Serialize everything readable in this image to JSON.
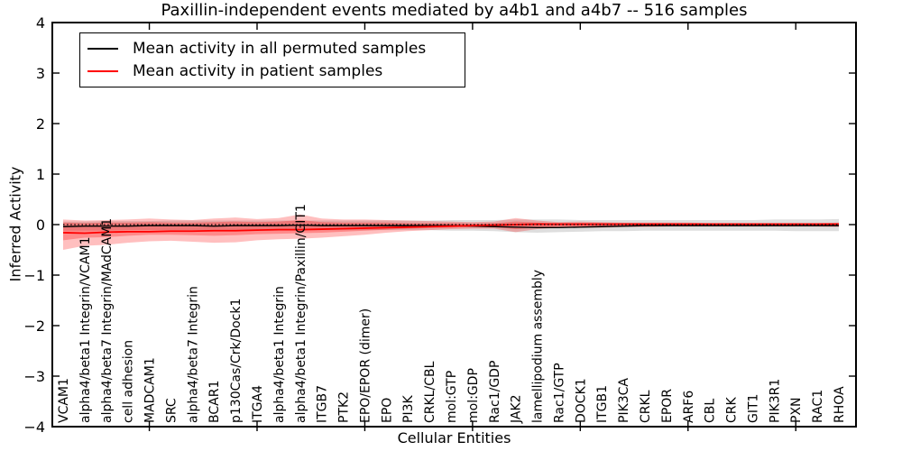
{
  "figure": {
    "title": "Paxillin-independent events mediated by a4b1 and a4b7 -- 516 samples",
    "xlabel": "Cellular Entities",
    "ylabel": "Inferred Activity",
    "legend": [
      {
        "label": "Mean activity in all permuted samples",
        "color": "#000000"
      },
      {
        "label": "Mean activity in patient samples",
        "color": "#ff0000"
      }
    ]
  },
  "chart_data": {
    "type": "line",
    "title": "Paxillin-independent events mediated by a4b1 and a4b7 -- 516 samples",
    "xlabel": "Cellular Entities",
    "ylabel": "Inferred Activity",
    "ylim": [
      -4,
      4
    ],
    "yticks": [
      4,
      3,
      2,
      1,
      0,
      -1,
      -2,
      -3,
      -4
    ],
    "grid": false,
    "legend_position": "upper left",
    "x_major_tick_indices": [
      4,
      9,
      14,
      19,
      24,
      29,
      34
    ],
    "categories": [
      "VCAM1",
      "alpha4/beta1 Integrin/VCAM1",
      "alpha4/beta7 Integrin/MAdCAM1",
      "cell adhesion",
      "MADCAM1",
      "SRC",
      "alpha4/beta7 Integrin",
      "BCAR1",
      "p130Cas/Crk/Dock1",
      "ITGA4",
      "alpha4/beta1 Integrin",
      "alpha4/beta1 Integrin/Paxillin/GIT1",
      "ITGB7",
      "PTK2",
      "EPO/EPOR (dimer)",
      "EPO",
      "PI3K",
      "CRKL/CBL",
      "mol:GTP",
      "mol:GDP",
      "Rac1/GDP",
      "JAK2",
      "lamellipodium assembly",
      "Rac1/GTP",
      "DOCK1",
      "ITGB1",
      "PIK3CA",
      "CRKL",
      "EPOR",
      "ARF6",
      "CBL",
      "CRK",
      "GIT1",
      "PIK3R1",
      "PXN",
      "RAC1",
      "RHOA"
    ],
    "series": [
      {
        "name": "Mean activity in all permuted samples",
        "color": "#000000",
        "style": "solid",
        "width": 1.4,
        "values": [
          -0.04,
          -0.03,
          -0.03,
          -0.03,
          -0.02,
          -0.02,
          -0.02,
          -0.03,
          -0.02,
          -0.02,
          -0.02,
          -0.01,
          -0.02,
          -0.02,
          -0.02,
          -0.02,
          -0.02,
          -0.02,
          -0.02,
          -0.03,
          -0.04,
          -0.05,
          -0.06,
          -0.06,
          -0.05,
          -0.04,
          -0.03,
          -0.02,
          -0.02,
          -0.02,
          -0.02,
          -0.02,
          -0.02,
          -0.02,
          -0.02,
          -0.02,
          -0.02
        ]
      },
      {
        "name": "Mean activity in patient samples",
        "color": "#ff0000",
        "style": "solid",
        "width": 1.8,
        "values": [
          -0.16,
          -0.17,
          -0.15,
          -0.14,
          -0.14,
          -0.13,
          -0.13,
          -0.12,
          -0.12,
          -0.11,
          -0.1,
          -0.1,
          -0.09,
          -0.08,
          -0.07,
          -0.06,
          -0.05,
          -0.04,
          -0.03,
          -0.02,
          -0.01,
          0.0,
          0.01,
          0.01,
          0.01,
          0.01,
          0.01,
          0.01,
          0.01,
          0.01,
          0.01,
          0.01,
          0.01,
          0.01,
          0.01,
          0.01,
          0.01
        ]
      },
      {
        "name": "zero reference",
        "color": "#000000",
        "style": "dotted",
        "width": 1.2,
        "values": [
          0,
          0,
          0,
          0,
          0,
          0,
          0,
          0,
          0,
          0,
          0,
          0,
          0,
          0,
          0,
          0,
          0,
          0,
          0,
          0,
          0,
          0,
          0,
          0,
          0,
          0,
          0,
          0,
          0,
          0,
          0,
          0,
          0,
          0,
          0,
          0,
          0
        ]
      }
    ],
    "bands": [
      {
        "name": "permuted-range",
        "color": "rgba(0,0,0,0.13)",
        "upper": [
          0.06,
          0.06,
          0.07,
          0.07,
          0.07,
          0.08,
          0.08,
          0.08,
          0.08,
          0.08,
          0.08,
          0.08,
          0.08,
          0.08,
          0.08,
          0.08,
          0.08,
          0.08,
          0.09,
          0.09,
          0.09,
          0.1,
          0.1,
          0.1,
          0.09,
          0.09,
          0.09,
          0.09,
          0.09,
          0.09,
          0.09,
          0.09,
          0.09,
          0.1,
          0.1,
          0.1,
          0.11
        ],
        "lower": [
          -0.12,
          -0.12,
          -0.12,
          -0.11,
          -0.11,
          -0.11,
          -0.11,
          -0.11,
          -0.11,
          -0.11,
          -0.11,
          -0.11,
          -0.11,
          -0.11,
          -0.11,
          -0.11,
          -0.11,
          -0.11,
          -0.12,
          -0.12,
          -0.13,
          -0.15,
          -0.16,
          -0.15,
          -0.14,
          -0.13,
          -0.13,
          -0.12,
          -0.12,
          -0.12,
          -0.12,
          -0.12,
          -0.12,
          -0.12,
          -0.13,
          -0.13,
          -0.13
        ]
      },
      {
        "name": "patient-range-outer",
        "color": "rgba(255,0,0,0.25)",
        "upper": [
          0.1,
          0.08,
          0.09,
          0.1,
          0.12,
          0.1,
          0.09,
          0.12,
          0.14,
          0.11,
          0.13,
          0.2,
          0.12,
          0.1,
          0.1,
          0.09,
          0.08,
          0.07,
          0.06,
          0.05,
          0.06,
          0.13,
          0.08,
          0.05,
          0.06,
          0.05,
          0.04,
          0.04,
          0.04,
          0.04,
          0.03,
          0.03,
          0.03,
          0.03,
          0.03,
          0.03,
          0.04
        ],
        "lower": [
          -0.5,
          -0.42,
          -0.4,
          -0.36,
          -0.33,
          -0.32,
          -0.34,
          -0.36,
          -0.35,
          -0.31,
          -0.29,
          -0.28,
          -0.26,
          -0.23,
          -0.2,
          -0.16,
          -0.13,
          -0.11,
          -0.09,
          -0.08,
          -0.08,
          -0.15,
          -0.09,
          -0.06,
          -0.06,
          -0.06,
          -0.05,
          -0.05,
          -0.04,
          -0.04,
          -0.04,
          -0.04,
          -0.04,
          -0.04,
          -0.04,
          -0.04,
          -0.05
        ]
      },
      {
        "name": "patient-range-inner",
        "color": "rgba(255,0,0,0.28)",
        "upper": [
          0.04,
          0.03,
          0.04,
          0.04,
          0.05,
          0.04,
          0.04,
          0.05,
          0.06,
          0.05,
          0.06,
          0.09,
          0.05,
          0.04,
          0.04,
          0.04,
          0.03,
          0.03,
          0.03,
          0.02,
          0.03,
          0.06,
          0.04,
          0.02,
          0.03,
          0.02,
          0.02,
          0.02,
          0.02,
          0.02,
          0.01,
          0.01,
          0.01,
          0.01,
          0.01,
          0.01,
          0.02
        ],
        "lower": [
          -0.31,
          -0.26,
          -0.25,
          -0.22,
          -0.2,
          -0.2,
          -0.21,
          -0.22,
          -0.21,
          -0.19,
          -0.18,
          -0.17,
          -0.16,
          -0.14,
          -0.12,
          -0.1,
          -0.08,
          -0.07,
          -0.06,
          -0.05,
          -0.05,
          -0.09,
          -0.06,
          -0.04,
          -0.04,
          -0.04,
          -0.03,
          -0.03,
          -0.03,
          -0.03,
          -0.03,
          -0.02,
          -0.02,
          -0.02,
          -0.02,
          -0.02,
          -0.03
        ]
      }
    ]
  }
}
